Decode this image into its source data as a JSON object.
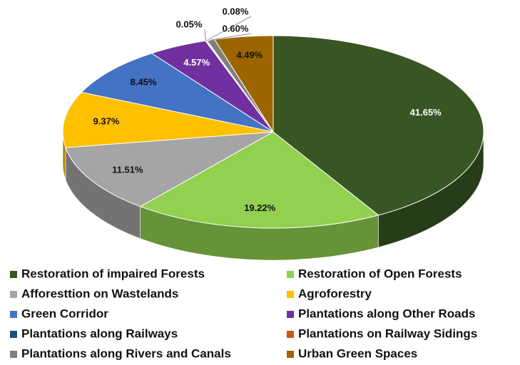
{
  "chart_data": {
    "type": "pie3d",
    "categories": [
      "Restoration of impaired Forests",
      "Restoration of Open Forests",
      "Afforesttion on Wastelands",
      "Agroforestry",
      "Green Corridor",
      "Plantations along Other Roads",
      "Plantations along Railways",
      "Plantations on Railway Sidings",
      "Plantations along Rivers and Canals",
      "Urban Green Spaces"
    ],
    "values": [
      41.65,
      19.22,
      11.51,
      9.37,
      8.45,
      4.57,
      0.05,
      0.08,
      0.6,
      4.49
    ],
    "value_labels": [
      "41.65%",
      "19.22%",
      "11.51%",
      "9.37%",
      "8.45%",
      "4.57%",
      "0.05%",
      "0.08%",
      "0.60%",
      "4.49%"
    ],
    "colors": [
      "#375623",
      "#92d050",
      "#a5a5a5",
      "#ffc000",
      "#4472c4",
      "#7030a0",
      "#1f4e79",
      "#c55a11",
      "#7f7f7f",
      "#9c6500"
    ],
    "legend": "bottom"
  }
}
